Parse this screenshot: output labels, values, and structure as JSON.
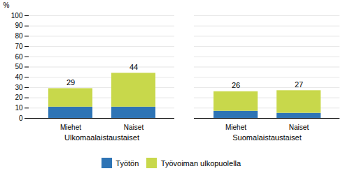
{
  "chart_data": {
    "type": "bar",
    "categories": [
      "Miehet",
      "Naiset",
      "Miehet",
      "Naiset"
    ],
    "groups": [
      "Ulkomaalaistaustaiset",
      "Ulkomaalaistaustaiset",
      "Suomalaistaustaiset",
      "Suomalaistaustaiset"
    ],
    "series": [
      {
        "name": "Työtön",
        "color": "#2E74B5",
        "values": [
          11,
          11,
          7,
          5
        ]
      },
      {
        "name": "Työvoiman ulkopuolella",
        "color": "#C8D84B",
        "values": [
          18,
          33,
          19,
          22
        ]
      }
    ],
    "totals": [
      29,
      44,
      26,
      27
    ],
    "stacked": true,
    "ylabel": "%",
    "ylim": [
      0,
      100
    ],
    "yticks": [
      0,
      10,
      20,
      30,
      40,
      50,
      60,
      70,
      80,
      90,
      100
    ],
    "grid": true,
    "legend": "bottom"
  }
}
